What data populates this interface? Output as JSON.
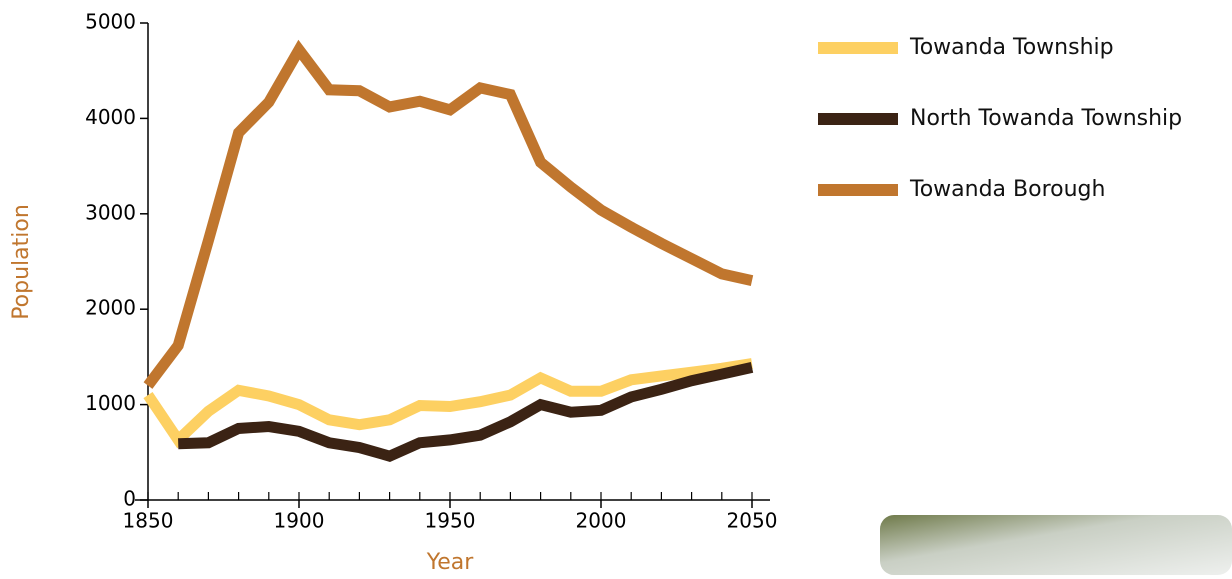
{
  "chart_data": {
    "type": "line",
    "x_label": "Year",
    "y_label": "Population",
    "x": [
      1850,
      1860,
      1870,
      1880,
      1890,
      1900,
      1910,
      1920,
      1930,
      1940,
      1950,
      1960,
      1970,
      1980,
      1990,
      2000,
      2010,
      2020,
      2030,
      2040,
      2050
    ],
    "series": [
      {
        "name": "Towanda Township",
        "color": "#fdd062",
        "values": [
          1100,
          630,
          930,
          1150,
          1090,
          1000,
          840,
          790,
          840,
          990,
          980,
          1030,
          1100,
          1280,
          1140,
          1140,
          1260,
          1300,
          1340,
          1380,
          1430
        ]
      },
      {
        "name": "North Towanda Township",
        "color": "#3b2314",
        "values": [
          null,
          590,
          600,
          750,
          770,
          720,
          600,
          550,
          460,
          600,
          630,
          680,
          820,
          1000,
          920,
          940,
          1080,
          1160,
          1250,
          1320,
          1390
        ]
      },
      {
        "name": "Towanda Borough",
        "color": "#c0762e",
        "values": [
          1200,
          1620,
          2720,
          3850,
          4170,
          4720,
          4300,
          4290,
          4120,
          4180,
          4090,
          4320,
          4250,
          3540,
          3280,
          3040,
          2860,
          2690,
          2530,
          2370,
          2300
        ]
      }
    ],
    "xlim": [
      1850,
      2050
    ],
    "xticks": [
      1850,
      1900,
      1950,
      2000,
      2050
    ],
    "ylim": [
      0,
      5000
    ],
    "yticks": [
      0,
      1000,
      2000,
      3000,
      4000,
      5000
    ],
    "grid": false,
    "legend": "right",
    "label_color": "#c0762e"
  }
}
